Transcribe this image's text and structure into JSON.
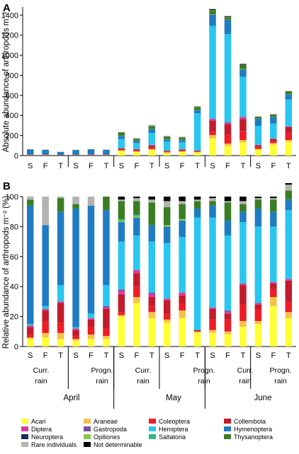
{
  "figure": {
    "panel_a_label": "A",
    "panel_b_label": "B",
    "month_labels": [
      "April",
      "May",
      "June"
    ],
    "group_labels": [
      [
        "Curr.",
        "rain"
      ],
      [
        "Progn.",
        "rain"
      ]
    ]
  },
  "colors": {
    "Acari": "#ffff33",
    "Araneae": "#f5c24a",
    "Coleoptera": "#ee1c25",
    "Collembola": "#c21b2c",
    "Diptera": "#e0399b",
    "Gastropoda": "#7b4fa0",
    "Hemiptera": "#29c6ef",
    "Hymenoptera": "#1f7cc2",
    "Neuroptera": "#1c2c5c",
    "Opiliones": "#8ac84a",
    "Saltatoria": "#2fb586",
    "Thysanoptera": "#3b7d23",
    "Rare individuals": "#b3b3b3",
    "Not determinable": "#000000"
  },
  "chart_data": [
    {
      "type": "bar",
      "stacked": true,
      "panel": "A",
      "ylabel": "Absolute abundance of arthropods m⁻²",
      "ylim": [
        0,
        1400
      ],
      "yticks": [
        0,
        200,
        400,
        600,
        800,
        1000,
        1200,
        1400
      ],
      "categories": [
        "S",
        "F",
        "T",
        "S",
        "F",
        "T",
        "S",
        "F",
        "T",
        "S",
        "F",
        "T",
        "S",
        "F",
        "T",
        "S",
        "F",
        "T"
      ],
      "series": [
        {
          "name": "Acari",
          "values": [
            2,
            2,
            1,
            2,
            2,
            2,
            45,
            35,
            55,
            25,
            35,
            30,
            170,
            95,
            130,
            55,
            110,
            140
          ]
        },
        {
          "name": "Araneae",
          "values": [
            1,
            1,
            1,
            1,
            1,
            1,
            8,
            8,
            10,
            8,
            8,
            6,
            35,
            25,
            25,
            12,
            15,
            15
          ]
        },
        {
          "name": "Coleoptera",
          "values": [
            1,
            2,
            1,
            1,
            2,
            2,
            6,
            8,
            15,
            8,
            6,
            4,
            30,
            90,
            90,
            20,
            20,
            65
          ]
        },
        {
          "name": "Collembola",
          "values": [
            4,
            4,
            3,
            3,
            4,
            4,
            12,
            10,
            20,
            6,
            10,
            8,
            115,
            100,
            120,
            15,
            20,
            65
          ]
        },
        {
          "name": "Diptera",
          "values": [
            1,
            1,
            1,
            1,
            1,
            1,
            3,
            3,
            5,
            2,
            3,
            2,
            15,
            18,
            18,
            3,
            3,
            4
          ]
        },
        {
          "name": "Gastropoda",
          "values": [
            0,
            0,
            0,
            0,
            0,
            0,
            1,
            1,
            1,
            1,
            1,
            1,
            3,
            3,
            3,
            1,
            1,
            1
          ]
        },
        {
          "name": "Hemiptera",
          "values": [
            0,
            0,
            0,
            0,
            0,
            0,
            90,
            60,
            120,
            90,
            70,
            370,
            925,
            880,
            400,
            190,
            150,
            270
          ]
        },
        {
          "name": "Hymenoptera",
          "values": [
            52,
            47,
            28,
            47,
            52,
            47,
            30,
            20,
            35,
            20,
            20,
            30,
            110,
            140,
            70,
            70,
            65,
            50
          ]
        },
        {
          "name": "Neuroptera",
          "values": [
            0,
            0,
            0,
            0,
            0,
            0,
            1,
            1,
            1,
            1,
            1,
            1,
            2,
            2,
            2,
            1,
            1,
            1
          ]
        },
        {
          "name": "Opiliones",
          "values": [
            0,
            0,
            0,
            0,
            0,
            0,
            1,
            1,
            1,
            1,
            1,
            1,
            2,
            1,
            2,
            1,
            1,
            1
          ]
        },
        {
          "name": "Saltatoria",
          "values": [
            0,
            0,
            0,
            0,
            0,
            0,
            1,
            1,
            1,
            1,
            1,
            1,
            2,
            1,
            2,
            1,
            1,
            1
          ]
        },
        {
          "name": "Thysanoptera",
          "values": [
            2,
            2,
            2,
            2,
            2,
            2,
            30,
            20,
            30,
            25,
            25,
            30,
            40,
            25,
            40,
            15,
            20,
            25
          ]
        },
        {
          "name": "Rare individuals",
          "values": [
            1,
            1,
            1,
            1,
            1,
            1,
            2,
            2,
            3,
            2,
            2,
            2,
            3,
            3,
            3,
            1,
            1,
            1
          ]
        },
        {
          "name": "Not determinable",
          "values": [
            0,
            0,
            0,
            0,
            0,
            0,
            3,
            2,
            3,
            3,
            2,
            3,
            8,
            7,
            8,
            3,
            3,
            3
          ]
        }
      ]
    },
    {
      "type": "bar",
      "stacked": true,
      "panel": "B",
      "ylabel": "Relative abundance of arthropods m⁻² (%)",
      "ylim": [
        0,
        100
      ],
      "yticks": [
        0,
        20,
        40,
        60,
        80,
        100
      ],
      "categories": [
        "S",
        "F",
        "T",
        "S",
        "F",
        "T",
        "S",
        "F",
        "T",
        "S",
        "F",
        "T",
        "S",
        "F",
        "T",
        "S",
        "F",
        "T"
      ],
      "series": [
        {
          "name": "Acari",
          "values": [
            5,
            6,
            5,
            4,
            5,
            5,
            20,
            29,
            19,
            16,
            19,
            9,
            9,
            8,
            13,
            15,
            27,
            19
          ]
        },
        {
          "name": "Araneae",
          "values": [
            1,
            3,
            4,
            1,
            3,
            2,
            1,
            4,
            4,
            2,
            5,
            1,
            2,
            2,
            4,
            2,
            6,
            4
          ]
        },
        {
          "name": "Coleoptera",
          "values": [
            2,
            8,
            7,
            2,
            5,
            5,
            2,
            7,
            4,
            4,
            5,
            0,
            7,
            8,
            11,
            8,
            5,
            7
          ]
        },
        {
          "name": "Collembola",
          "values": [
            5,
            7,
            13,
            4,
            5,
            13,
            12,
            9,
            6,
            9,
            5,
            1,
            7,
            4,
            13,
            3,
            4,
            14
          ]
        },
        {
          "name": "Diptera",
          "values": [
            1,
            1,
            1,
            1,
            1,
            1,
            2,
            2,
            2,
            1,
            2,
            0,
            1,
            1,
            1,
            1,
            1,
            1
          ]
        },
        {
          "name": "Gastropoda",
          "values": [
            0,
            0,
            0,
            0,
            0,
            1,
            1,
            0,
            1,
            0,
            0,
            0,
            0,
            1,
            0,
            0,
            0,
            0
          ]
        },
        {
          "name": "Hemiptera",
          "values": [
            1,
            2,
            11,
            1,
            3,
            14,
            32,
            23,
            34,
            37,
            37,
            75,
            60,
            50,
            41,
            51,
            37,
            46
          ]
        },
        {
          "name": "Hymenoptera",
          "values": [
            79,
            54,
            49,
            79,
            72,
            50,
            13,
            12,
            11,
            11,
            11,
            6,
            8,
            10,
            7,
            12,
            10,
            7
          ]
        },
        {
          "name": "Neuroptera",
          "values": [
            0,
            0,
            0,
            0,
            0,
            0,
            0,
            0,
            0,
            0,
            0,
            0,
            0,
            0,
            0,
            0,
            0,
            0
          ]
        },
        {
          "name": "Opiliones",
          "values": [
            0,
            0,
            0,
            0,
            0,
            0,
            1,
            1,
            0,
            1,
            1,
            0,
            0,
            0,
            0,
            0,
            0,
            0
          ]
        },
        {
          "name": "Saltatoria",
          "values": [
            0,
            0,
            0,
            0,
            0,
            0,
            1,
            1,
            0,
            0,
            0,
            0,
            0,
            0,
            0,
            0,
            0,
            0
          ]
        },
        {
          "name": "Thysanoptera",
          "values": [
            4,
            0,
            9,
            3,
            0,
            9,
            12,
            9,
            15,
            12,
            10,
            5,
            3,
            12,
            5,
            6,
            8,
            6
          ]
        },
        {
          "name": "Rare individuals",
          "values": [
            2,
            19,
            1,
            5,
            6,
            0,
            1,
            2,
            2,
            4,
            2,
            1,
            2,
            1,
            2,
            1,
            1,
            4
          ]
        },
        {
          "name": "Not determinable",
          "values": [
            0,
            0,
            0,
            0,
            0,
            0,
            2,
            1,
            2,
            3,
            3,
            2,
            1,
            3,
            3,
            1,
            1,
            1
          ]
        }
      ]
    }
  ],
  "legend": {
    "entries": [
      "Acari",
      "Araneae",
      "Coleoptera",
      "Collembola",
      "Diptera",
      "Gastropoda",
      "Hemiptera",
      "Hymenoptera",
      "Neuroptera",
      "Opiliones",
      "Saltatoria",
      "Thysanoptera",
      "Rare individuals",
      "Not determinable"
    ],
    "columns": 4,
    "placement": "bottom"
  }
}
